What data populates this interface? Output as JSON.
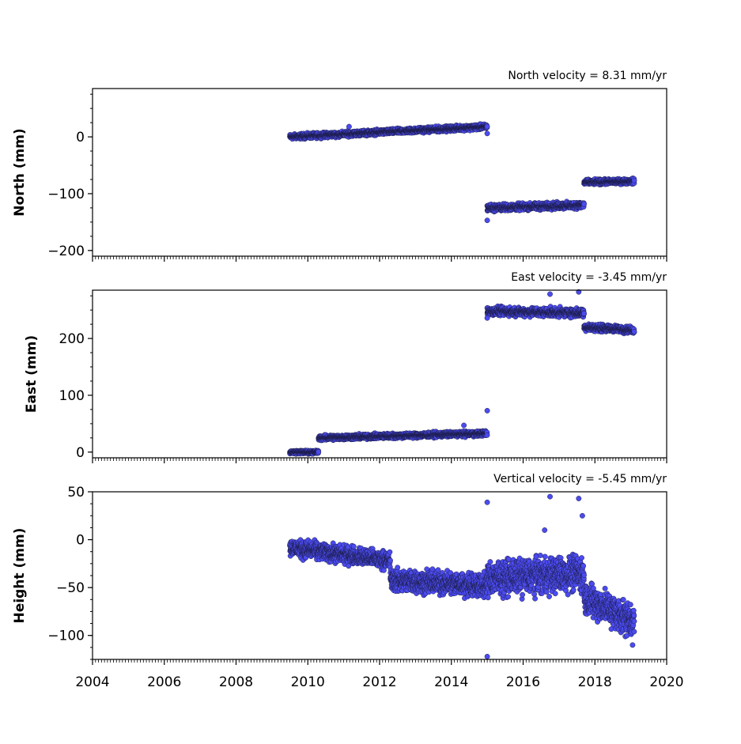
{
  "chart_data": [
    {
      "type": "scatter",
      "velocity_text": "North velocity = 8.31 mm/yr",
      "ylabel": "North (mm)",
      "ylim": [
        -210,
        85
      ],
      "yticks": [
        0,
        -100,
        -200
      ],
      "yticklabels": [
        "0",
        "−100",
        "−200"
      ],
      "xlim": [
        2004,
        2020
      ],
      "xtick_labels_shown": false,
      "segments": [
        {
          "x_start": 2009.5,
          "x_end": 2015.0,
          "y_start": 0,
          "y_end": 18,
          "noise": 3
        },
        {
          "x_start": 2015.0,
          "x_end": 2017.7,
          "y_start": -125,
          "y_end": -120,
          "noise": 4
        },
        {
          "x_start": 2017.7,
          "x_end": 2019.1,
          "y_start": -80,
          "y_end": -78,
          "noise": 3
        }
      ],
      "outliers": [
        {
          "x": 2011.15,
          "y": 18
        },
        {
          "x": 2015.0,
          "y": -147
        },
        {
          "x": 2015.0,
          "y": 6
        }
      ],
      "marker_color": "#4b4bf0"
    },
    {
      "type": "scatter",
      "velocity_text": "East velocity = -3.45 mm/yr",
      "ylabel": "East (mm)",
      "ylim": [
        -10,
        285
      ],
      "yticks": [
        0,
        100,
        200
      ],
      "yticklabels": [
        "0",
        "100",
        "200"
      ],
      "xlim": [
        2004,
        2020
      ],
      "xtick_labels_shown": false,
      "segments": [
        {
          "x_start": 2009.5,
          "x_end": 2010.3,
          "y_start": 0,
          "y_end": 0,
          "noise": 2
        },
        {
          "x_start": 2010.3,
          "x_end": 2015.0,
          "y_start": 25,
          "y_end": 33,
          "noise": 3
        },
        {
          "x_start": 2015.0,
          "x_end": 2017.7,
          "y_start": 248,
          "y_end": 245,
          "noise": 5
        },
        {
          "x_start": 2017.7,
          "x_end": 2019.1,
          "y_start": 220,
          "y_end": 215,
          "noise": 4
        }
      ],
      "outliers": [
        {
          "x": 2015.0,
          "y": 73
        },
        {
          "x": 2015.0,
          "y": 236
        },
        {
          "x": 2014.35,
          "y": 47
        },
        {
          "x": 2016.75,
          "y": 278
        },
        {
          "x": 2017.55,
          "y": 282
        }
      ],
      "marker_color": "#4b4bf0"
    },
    {
      "type": "scatter",
      "velocity_text": "Vertical velocity = -5.45 mm/yr",
      "ylabel": "Height (mm)",
      "ylim": [
        -125,
        50
      ],
      "yticks": [
        50,
        0,
        -50,
        -100
      ],
      "yticklabels": [
        "50",
        "0",
        "−50",
        "−100"
      ],
      "xlim": [
        2004,
        2020
      ],
      "xticks": [
        2004,
        2006,
        2008,
        2010,
        2012,
        2014,
        2016,
        2018,
        2020
      ],
      "xticklabels": [
        "2004",
        "2006",
        "2008",
        "2010",
        "2012",
        "2014",
        "2016",
        "2018",
        "2020"
      ],
      "segments": [
        {
          "x_start": 2009.5,
          "x_end": 2012.3,
          "y_start": -8,
          "y_end": -22,
          "noise": 6
        },
        {
          "x_start": 2012.3,
          "x_end": 2015.0,
          "y_start": -42,
          "y_end": -48,
          "noise": 8
        },
        {
          "x_start": 2015.0,
          "x_end": 2017.7,
          "y_start": -40,
          "y_end": -35,
          "noise": 12
        },
        {
          "x_start": 2017.7,
          "x_end": 2019.1,
          "y_start": -60,
          "y_end": -85,
          "noise": 12
        }
      ],
      "outliers": [
        {
          "x": 2015.0,
          "y": 39
        },
        {
          "x": 2015.0,
          "y": -122
        },
        {
          "x": 2016.75,
          "y": 45
        },
        {
          "x": 2017.55,
          "y": 43
        },
        {
          "x": 2017.65,
          "y": 25
        },
        {
          "x": 2016.6,
          "y": 10
        },
        {
          "x": 2019.05,
          "y": -110
        }
      ],
      "marker_color": "#4b4bf0"
    }
  ]
}
